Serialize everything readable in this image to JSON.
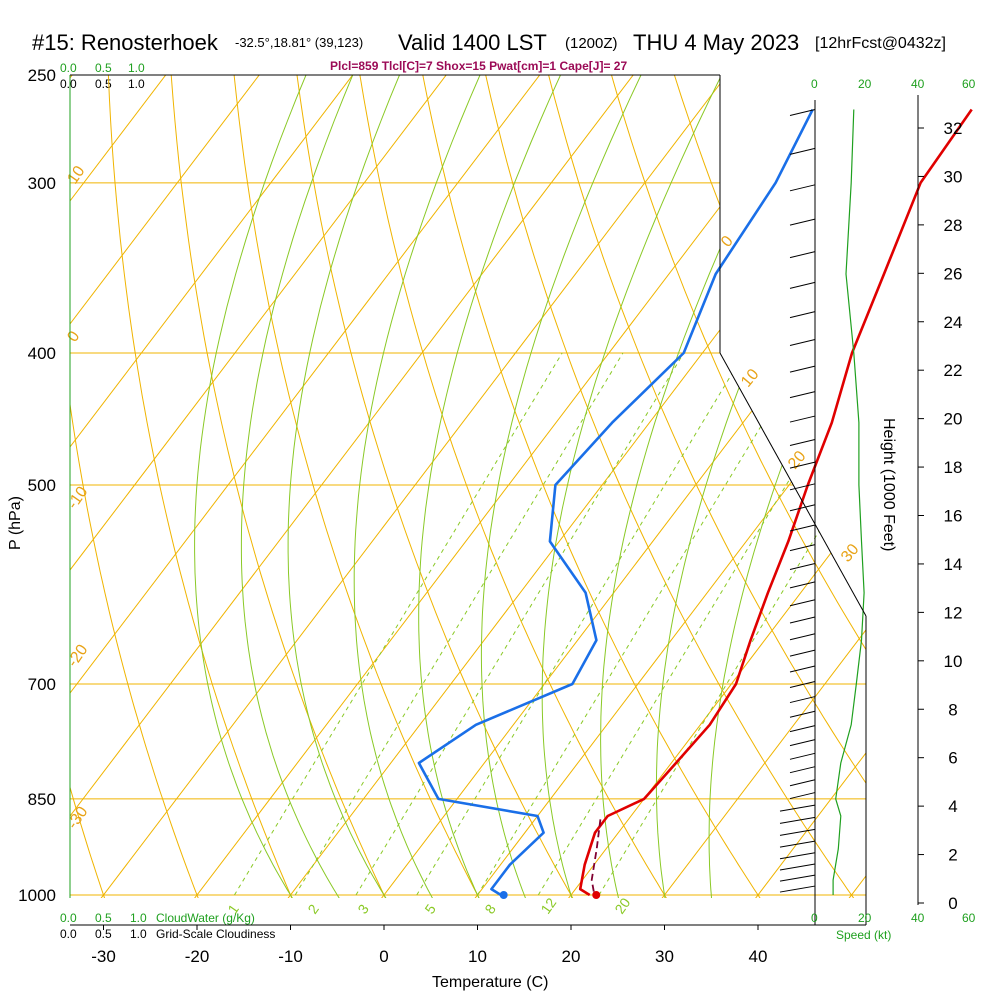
{
  "header": {
    "station": "#15: Renosterhoek",
    "coords": "-32.5°,18.81° (39,123)",
    "valid": "Valid 1400 LST",
    "valid_z": "(1200Z)",
    "date": "THU 4 May 2023",
    "forecast": "[12hrFcst@0432z]"
  },
  "indices_text": "Plcl=859 Tlcl[C]=7 Shox=15 Pwat[cm]=1 Cape[J]= 27",
  "colors": {
    "temperature": "#e00000",
    "dewpoint": "#1a6fe8",
    "isotherm": "#f0b400",
    "dry_adiabat": "#8ac926",
    "moist_adiabat": "#8ac926",
    "mixing_ratio": "#8ac926",
    "wind_speed": "#1fa01f",
    "parcel": "#800030"
  },
  "top_scales": {
    "cloud_water": [
      "0.0",
      "0.5",
      "1.0"
    ],
    "cloudiness": [
      "0.0",
      "0.5",
      "1.0"
    ],
    "speed": [
      "0",
      "20",
      "40",
      "60"
    ]
  },
  "bottom_scales": {
    "cloud_water": [
      "0.0",
      "0.5",
      "1.0"
    ],
    "cloud_water_label": "CloudWater (g/Kg)",
    "cloudiness": [
      "0.0",
      "0.5",
      "1.0"
    ],
    "cloudiness_label": "Grid-Scale Cloudiness",
    "speed": [
      "0",
      "20",
      "40",
      "60"
    ],
    "speed_label": "Speed (kt)"
  },
  "chart_data": {
    "type": "line",
    "subtype": "skew-T log-P sounding",
    "xlabel": "Temperature (C)",
    "ylabel": "P (hPa)",
    "y2label": "Height (1000 Feet)",
    "x_ticks": [
      -30,
      -20,
      -10,
      0,
      10,
      20,
      30,
      40
    ],
    "y_ticks": [
      250,
      300,
      400,
      500,
      700,
      850,
      1000
    ],
    "y2_ticks": [
      0,
      2,
      4,
      6,
      8,
      10,
      12,
      14,
      16,
      18,
      20,
      22,
      24,
      26,
      28,
      30,
      32
    ],
    "log_scale_y": true,
    "isotherm_labels": [
      "10",
      "0",
      "-10",
      "-20",
      "-30",
      "0",
      "10",
      "20",
      "30"
    ],
    "mixing_ratio_labels": [
      "1",
      "2",
      "3",
      "5",
      "8",
      "12",
      "20"
    ],
    "surface_temperature": 22.7,
    "surface_dewpoint": 12.8,
    "series": [
      {
        "name": "Temperature",
        "points": [
          [
            -1,
            265
          ],
          [
            -0.5,
            300
          ],
          [
            3,
            350
          ],
          [
            6,
            400
          ],
          [
            9.5,
            450
          ],
          [
            12,
            500
          ],
          [
            14.5,
            550
          ],
          [
            16.5,
            600
          ],
          [
            18.5,
            650
          ],
          [
            20.5,
            700
          ],
          [
            21,
            750
          ],
          [
            20.5,
            800
          ],
          [
            20,
            850
          ],
          [
            17.5,
            875
          ],
          [
            17.5,
            900
          ],
          [
            19,
            950
          ],
          [
            20.5,
            990
          ],
          [
            22,
            1000
          ]
        ]
      },
      {
        "name": "Dewpoint",
        "points": [
          [
            -18,
            265
          ],
          [
            -16,
            300
          ],
          [
            -15,
            350
          ],
          [
            -12,
            400
          ],
          [
            -14,
            450
          ],
          [
            -15,
            500
          ],
          [
            -11,
            550
          ],
          [
            -3,
            600
          ],
          [
            2,
            650
          ],
          [
            3,
            700
          ],
          [
            -4,
            750
          ],
          [
            -7,
            800
          ],
          [
            -2,
            850
          ],
          [
            10,
            875
          ],
          [
            12,
            900
          ],
          [
            11,
            950
          ],
          [
            11,
            990
          ],
          [
            12.5,
            1000
          ]
        ]
      },
      {
        "name": "Parcel",
        "points": [
          [
            17,
            880
          ],
          [
            19,
            925
          ],
          [
            21,
            975
          ],
          [
            22.5,
            1000
          ]
        ]
      }
    ],
    "wind_speed_kt": [
      [
        15,
        265
      ],
      [
        14,
        300
      ],
      [
        12,
        350
      ],
      [
        15,
        400
      ],
      [
        17,
        450
      ],
      [
        17,
        500
      ],
      [
        18,
        550
      ],
      [
        19,
        600
      ],
      [
        18,
        650
      ],
      [
        16,
        700
      ],
      [
        14,
        750
      ],
      [
        10,
        800
      ],
      [
        8,
        850
      ],
      [
        10,
        875
      ],
      [
        9,
        925
      ],
      [
        7,
        975
      ],
      [
        7,
        1000
      ]
    ]
  }
}
